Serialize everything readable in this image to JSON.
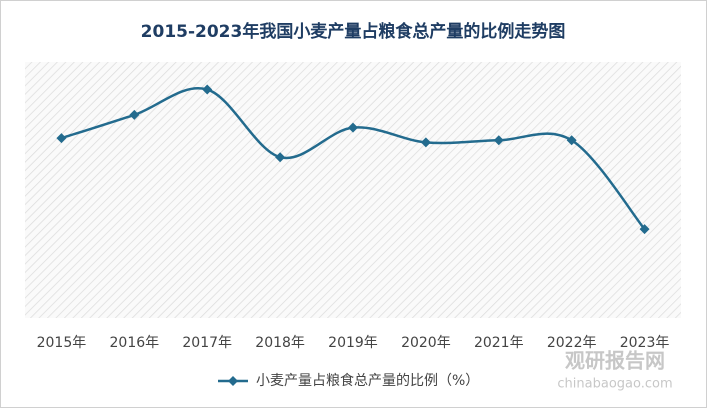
{
  "chart_data": {
    "type": "line",
    "title": "2015-2023年我国小麦产量占粮食总产量的比例走势图",
    "categories": [
      "2015年",
      "2016年",
      "2017年",
      "2018年",
      "2019年",
      "2020年",
      "2021年",
      "2022年",
      "2023年"
    ],
    "series": [
      {
        "name": "小麦产量占粮食总产量的比例（%）",
        "color": "#236b8e",
        "values": [
          20.07,
          20.18,
          20.3,
          19.98,
          20.12,
          20.05,
          20.06,
          20.06,
          19.64
        ]
      }
    ],
    "ylim": [
      19.22,
      20.43
    ],
    "smooth": true,
    "legend": "bottom"
  },
  "watermark": {
    "name": "观研报告网",
    "url": "chinabaogao.com"
  }
}
